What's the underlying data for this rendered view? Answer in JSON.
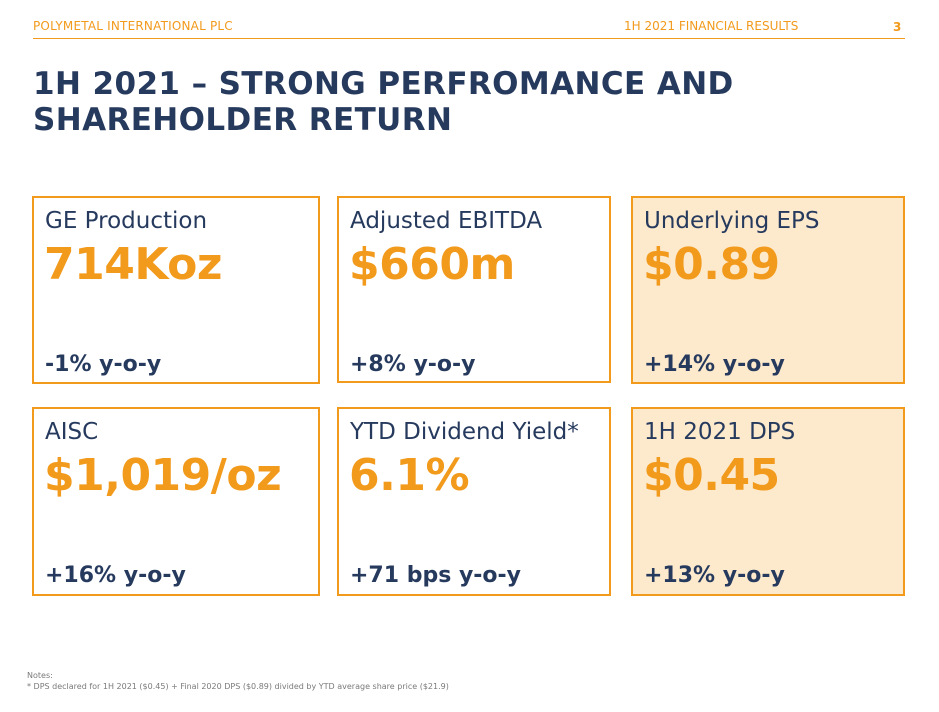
{
  "header": {
    "company": "POLYMETAL INTERNATIONAL PLC",
    "section": "1H 2021 FINANCIAL RESULTS",
    "page_number": "3"
  },
  "slide": {
    "title": "1H 2021 – STRONG PERFROMANCE AND SHAREHOLDER RETURN"
  },
  "kpis": [
    {
      "label": "GE Production",
      "value": "714Koz",
      "change": "-1% y-o-y"
    },
    {
      "label": "Adjusted EBITDA",
      "value": "$660m",
      "change": "+8% y-o-y"
    },
    {
      "label": "Underlying EPS",
      "value": "$0.89",
      "change": "+14% y-o-y"
    },
    {
      "label": "AISC",
      "value": "$1,019/oz",
      "change": "+16% y-o-y"
    },
    {
      "label": "YTD Dividend Yield*",
      "value": "6.1%",
      "change": "+71 bps y-o-y"
    },
    {
      "label": "1H 2021 DPS",
      "value": "$0.45",
      "change": "+13% y-o-y"
    }
  ],
  "notes": {
    "heading": "Notes:",
    "footnote": "* DPS declared for 1H 2021 ($0.45) + Final 2020 DPS ($0.89) divided by YTD average share price ($21.9)"
  },
  "colors": {
    "accent": "#f29a1c",
    "navy": "#263a5e",
    "highlight_fill": "#fde9cc"
  }
}
